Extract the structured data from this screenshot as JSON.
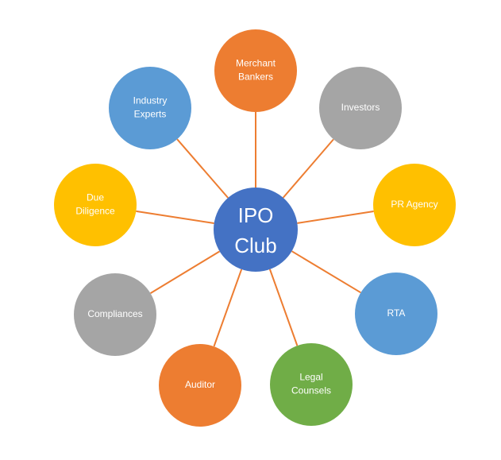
{
  "center": {
    "lines": [
      "IPO",
      "Club"
    ],
    "color": "#4472C4"
  },
  "connector_color": "#ED7D31",
  "nodes": [
    {
      "id": "merchant-bankers",
      "lines": [
        "Merchant",
        "Bankers"
      ],
      "color": "#ED7D31"
    },
    {
      "id": "investors",
      "lines": [
        "Investors"
      ],
      "color": "#A5A5A5"
    },
    {
      "id": "pr-agency",
      "lines": [
        "PR Agency"
      ],
      "color": "#FFC000"
    },
    {
      "id": "rta",
      "lines": [
        "RTA"
      ],
      "color": "#5B9BD5"
    },
    {
      "id": "legal-counsels",
      "lines": [
        "Legal",
        "Counsels"
      ],
      "color": "#70AD47"
    },
    {
      "id": "auditor",
      "lines": [
        "Auditor"
      ],
      "color": "#ED7D31"
    },
    {
      "id": "compliances",
      "lines": [
        "Compliances"
      ],
      "color": "#A5A5A5"
    },
    {
      "id": "due-diligence",
      "lines": [
        "Due",
        "Diligence"
      ],
      "color": "#FFC000"
    },
    {
      "id": "industry-experts",
      "lines": [
        "Industry",
        "Experts"
      ],
      "color": "#5B9BD5"
    }
  ]
}
